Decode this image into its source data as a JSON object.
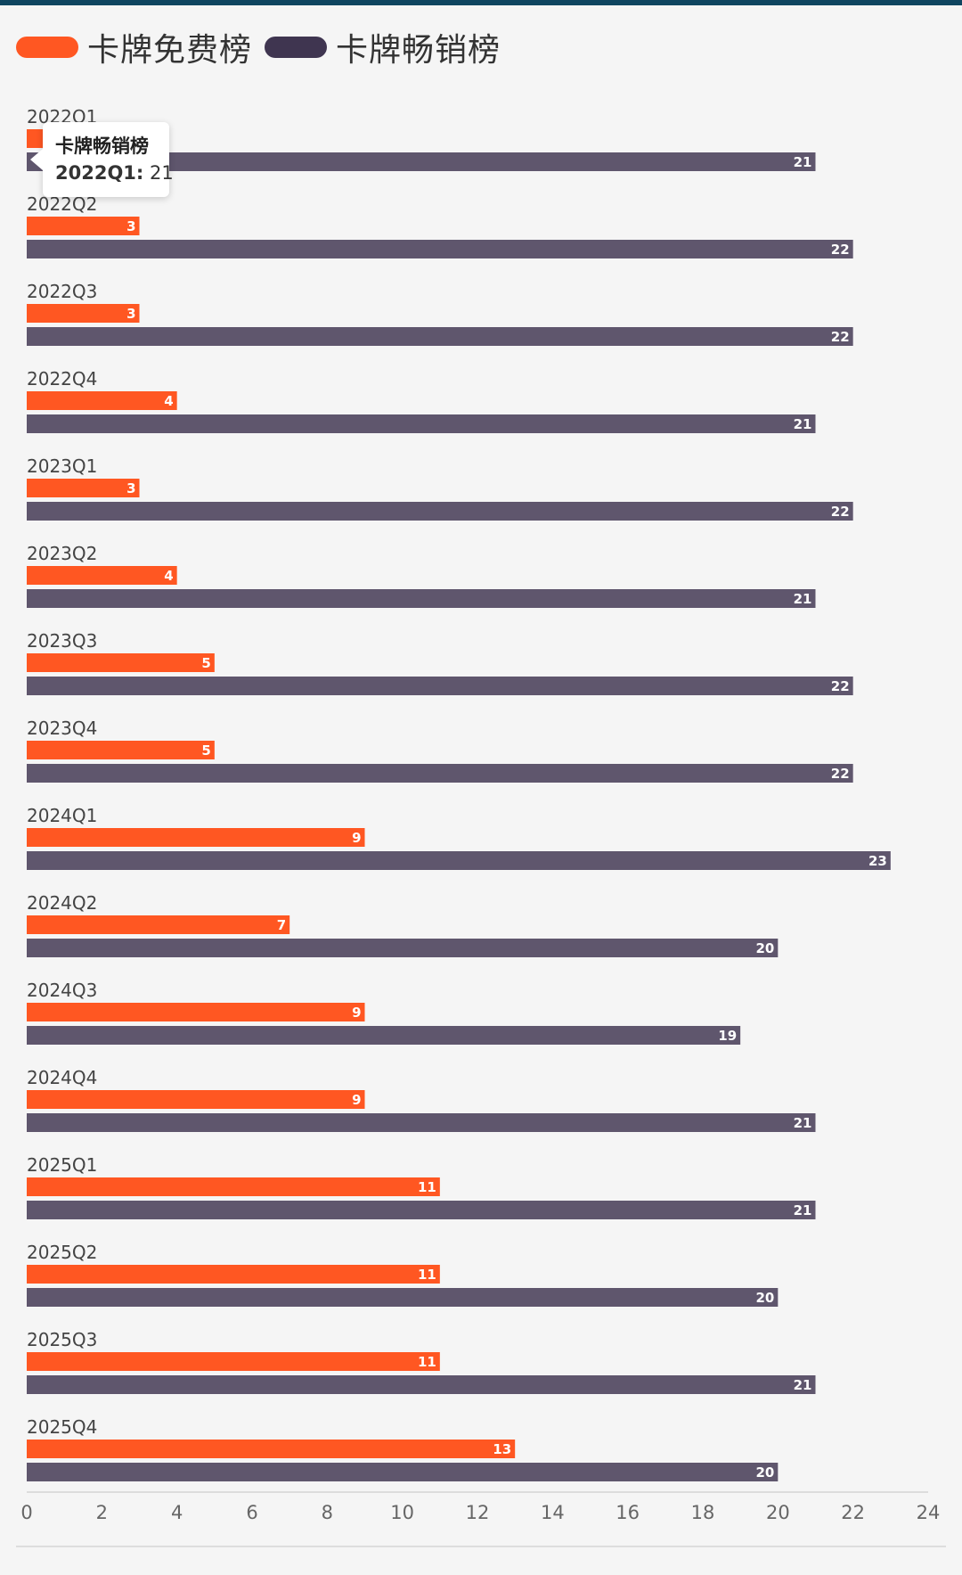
{
  "colors": {
    "free": "#ff5722",
    "sales": "#5f566d",
    "sales_swatch": "#3f3550"
  },
  "legend": {
    "free_label": "卡牌免费榜",
    "sales_label": "卡牌畅销榜"
  },
  "tooltip": {
    "series": "卡牌畅销榜",
    "category": "2022Q1:",
    "value": "21"
  },
  "chart_data": {
    "type": "bar",
    "orientation": "horizontal",
    "categories": [
      "2022Q1",
      "2022Q2",
      "2022Q3",
      "2022Q4",
      "2023Q1",
      "2023Q2",
      "2023Q3",
      "2023Q4",
      "2024Q1",
      "2024Q2",
      "2024Q3",
      "2024Q4",
      "2025Q1",
      "2025Q2",
      "2025Q3",
      "2025Q4"
    ],
    "series": [
      {
        "name": "卡牌免费榜",
        "values": [
          null,
          3,
          3,
          4,
          3,
          4,
          5,
          5,
          9,
          7,
          9,
          9,
          11,
          11,
          11,
          13
        ]
      },
      {
        "name": "卡牌畅销榜",
        "values": [
          21,
          22,
          22,
          21,
          22,
          21,
          22,
          22,
          23,
          20,
          19,
          21,
          21,
          20,
          21,
          20
        ]
      }
    ],
    "xlim": [
      0,
      24
    ],
    "xticks": [
      0,
      2,
      4,
      6,
      8,
      10,
      12,
      14,
      16,
      18,
      20,
      22,
      24
    ],
    "title": "",
    "xlabel": "",
    "ylabel": "",
    "legend_position": "top-left"
  }
}
